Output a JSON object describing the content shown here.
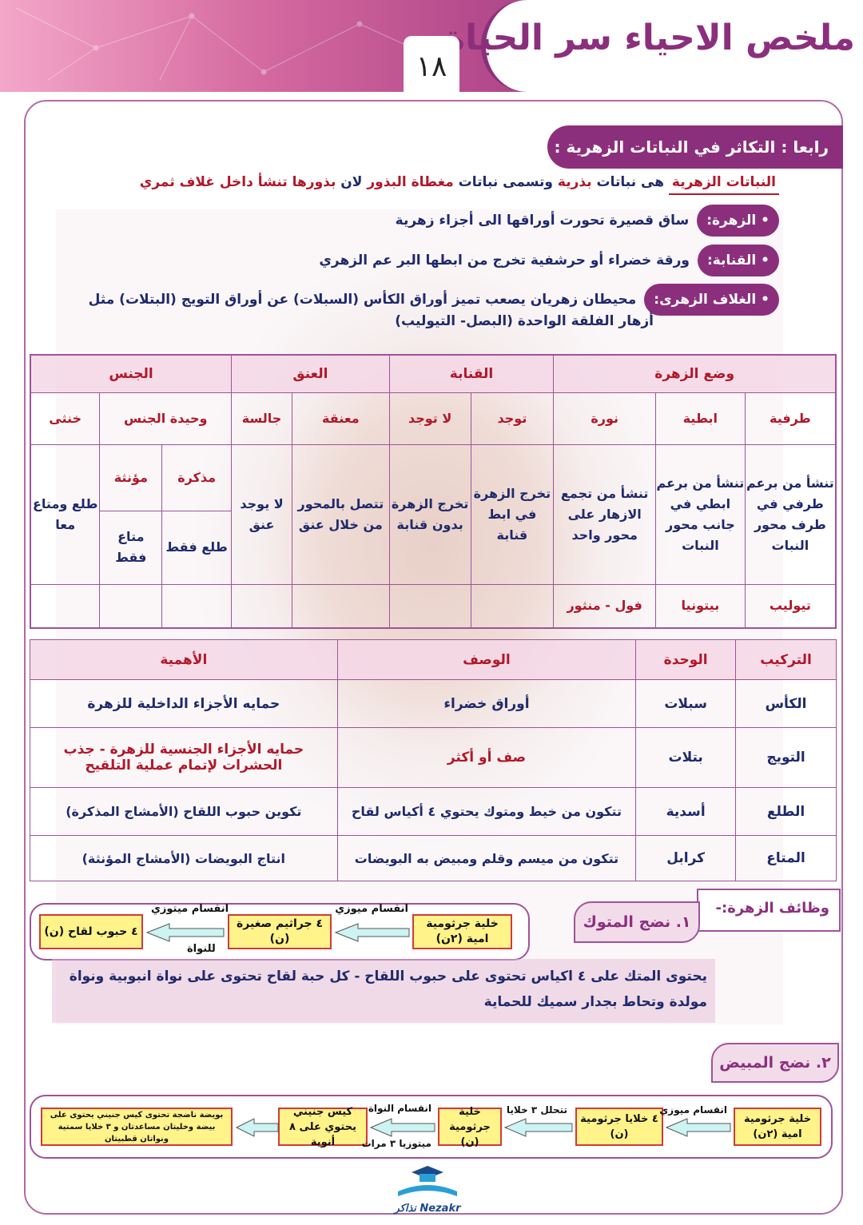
{
  "header": {
    "title": "ملخص الاحياء سر الحياة",
    "page_number": "١٨"
  },
  "section": {
    "heading": "رابعا : التكاثر في النباتات الزهرية :",
    "definition": {
      "term": "النباتات الزهرية",
      "text1": "هى نباتات",
      "w1": "بذرية",
      "text2": "وتسمى نباتات",
      "w2": "مغطاة البذور",
      "text3": "لان",
      "w3": "بذورها تنشأ داخل غلاف ثمري"
    },
    "bullets": [
      {
        "term": "• الزهرة:",
        "text": "ساق قصيرة تحورت أوراقها الى أجزاء زهرية"
      },
      {
        "term": "• القنابة:",
        "text": "ورقة خضراء أو حرشفية تخرج من ابطها البر عم الزهري"
      },
      {
        "term": "• الغلاف الزهرى:",
        "text": "محيطان زهريان يصعب تميز أوراق الكأس (السبلات) عن أوراق التويج (البتلات) مثل",
        "text2": "أزهار الفلقة الواحدة (البصل- التيوليب)"
      }
    ]
  },
  "table1": {
    "groups": [
      "وضع الزهرة",
      "القنابة",
      "العنق",
      "الجنس"
    ],
    "sub": [
      "طرفية",
      "ابطية",
      "نورة",
      "توجد",
      "لا توجد",
      "معنقة",
      "جالسة",
      "وحيدة الجنس",
      "خنثى"
    ],
    "desc": [
      "تنشأ من برعم طرفي في طرف محور النبات",
      "تنشأ من برعم ابطي في جانب محور النبات",
      "تنشأ من تجمع الازهار على محور واحد",
      "تخرج الزهرة في ابط قنابة",
      "تخرج الزهرة بدون قنابة",
      "تتصل بالمحور من خلال عنق",
      "لا يوجد عنق",
      "مذكرة",
      "مؤنثة",
      "طلع ومتاع معا"
    ],
    "unisex_desc": [
      "طلع فقط",
      "متاع فقط"
    ],
    "examples": [
      "تيوليب",
      "بيتونيا",
      "فول - منثور"
    ]
  },
  "table2": {
    "headers": [
      "التركيب",
      "الوحدة",
      "الوصف",
      "الأهمية"
    ],
    "rows": [
      [
        "الكأس",
        "سبلات",
        "أوراق خضراء",
        "حمايه الأجزاء الداخلية للزهرة"
      ],
      [
        "التويج",
        "بتلات",
        "صف أو أكثر",
        "حمايه الأجزاء الجنسية للزهرة - جذب الحشرات لإتمام عملية التلقيح"
      ],
      [
        "الطلع",
        "أسدية",
        "تتكون من خيط ومتوك يحتوي ٤ أكياس لقاح",
        "تكوين حبوب اللقاح (الأمشاج المذكرة)"
      ],
      [
        "المتاع",
        "كرابل",
        "تتكون من ميسم وقلم ومبيض به البويضات",
        "انتاج البويضات (الأمشاج المؤنثة)"
      ]
    ]
  },
  "functions": {
    "heading": "وظائف الزهرة:-",
    "anther": {
      "title": "١. نضج المتوك",
      "boxes": [
        "خلية جرثومية امية (٢ن)",
        "٤ جراثيم صغيرة (ن)",
        "٤ حبوب لقاح (ن)"
      ],
      "labels": [
        "انقسام ميوزي",
        "انقسام ميتوزي",
        "للنواة"
      ],
      "paragraph": "يحتوى المتك على ٤ اكياس تحتوى على حبوب اللقاح - كل حبة لقاح تحتوى على نواة انبوبية ونواة مولدة وتحاط بجدار سميك للحماية"
    },
    "ovary": {
      "title": "٢. نضج المبيض",
      "boxes": [
        "خلية جرثومية امية (٢ن)",
        "٤ خلايا جرثومية (ن)",
        "خلية جرثومية (ن)",
        "كيس جنيني يحتوي على ٨ أنوية",
        "بويضة ناضجة تحتوى كيس جنيني يحتوى على بيضة وخليتان مساعدتان و ٣ خلايا سمتية ونواتان قطبيتان"
      ],
      "labels": [
        "انقسام ميوزي",
        "تتحلل ٣ خلايا",
        "انقسام النواة",
        "ميتوزيا ٣ مرات"
      ]
    }
  },
  "logo": {
    "text": "Nezakr نذاكر"
  },
  "colors": {
    "purple": "#8b2f7d",
    "navy": "#1f2a6b",
    "red": "#b0182a",
    "box": "#fff38a"
  }
}
